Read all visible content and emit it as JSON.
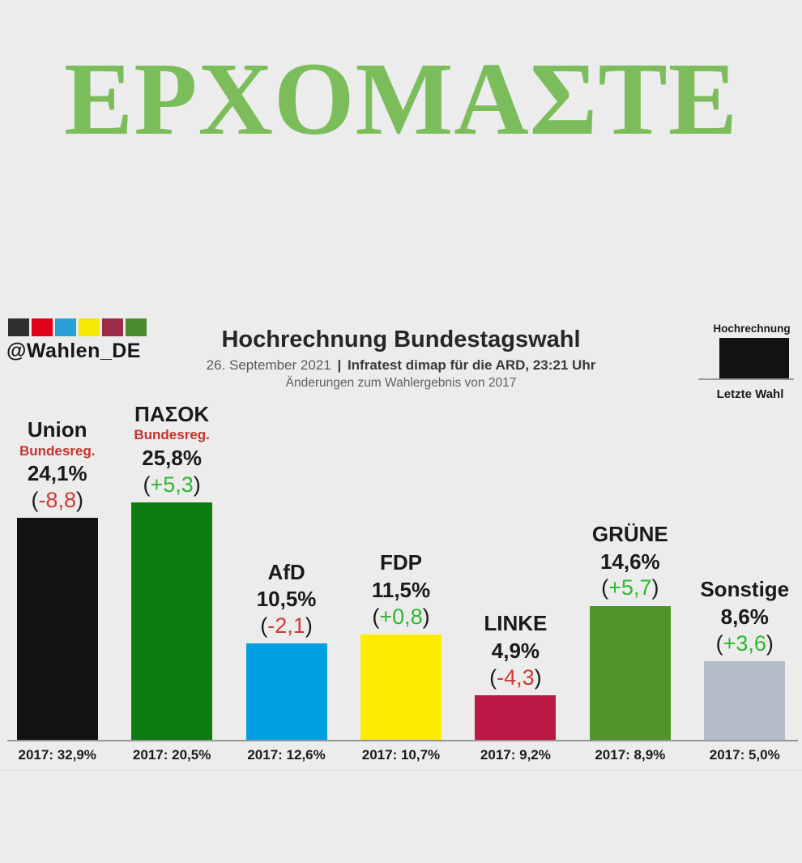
{
  "banner": {
    "text": "ΕΡΧΟΜΑΣΤΕ",
    "color": "#7cbd5b"
  },
  "header": {
    "logo": {
      "handle": "@Wahlen_DE",
      "squares": [
        "#2f2f2d",
        "#e2001a",
        "#2b9fd8",
        "#f5e903",
        "#9c2b47",
        "#4b8b31"
      ]
    },
    "title": "Hochrechnung Bundestagswahl",
    "subtitle": {
      "date": "26. September 2021",
      "separator": "|",
      "source": "Infratest dimap für die ARD, 23:21 Uhr",
      "note": "Änderungen zum Wahlergebnis von 2017"
    },
    "legend": {
      "top_label": "Hochrechnung",
      "bottom_label": "Letzte Wahl",
      "box_color": "#121212"
    }
  },
  "chart_data": {
    "type": "bar",
    "title": "Hochrechnung Bundestagswahl",
    "subtitle": "26. September 2021 | Infratest dimap für die ARD, 23:21 Uhr",
    "note": "Änderungen zum Wahlergebnis von 2017",
    "categories": [
      "Union",
      "ΠΑΣΟΚ",
      "AfD",
      "FDP",
      "LINKE",
      "GRÜNE",
      "Sonstige"
    ],
    "values": [
      24.1,
      25.8,
      10.5,
      11.5,
      4.9,
      14.6,
      8.6
    ],
    "changes": [
      "-8,8",
      "+5,3",
      "-2,1",
      "+0,8",
      "-4,3",
      "+5,7",
      "+3,6"
    ],
    "previous_2017": [
      32.9,
      20.5,
      12.6,
      10.7,
      9.2,
      8.9,
      5.0
    ],
    "ylim": [
      0,
      30
    ],
    "grid": false,
    "legend_position": "top-right",
    "parties": [
      {
        "key": "union",
        "name": "Union",
        "tag": "Bundesreg.",
        "value": 24.1,
        "value_label": "24,1%",
        "change": "-8,8",
        "change_color": "#d03a34",
        "color": "#121212",
        "axis_label": "2017: 32,9%"
      },
      {
        "key": "pasok",
        "name": "ΠΑΣΟΚ",
        "tag": "Bundesreg.",
        "value": 25.8,
        "value_label": "25,8%",
        "change": "+5,3",
        "change_color": "#2eb82e",
        "color": "#0d7d12",
        "axis_label": "2017: 20,5%"
      },
      {
        "key": "afd",
        "name": "AfD",
        "tag": "",
        "value": 10.5,
        "value_label": "10,5%",
        "change": "-2,1",
        "change_color": "#d03a34",
        "color": "#009fe0",
        "axis_label": "2017: 12,6%"
      },
      {
        "key": "fdp",
        "name": "FDP",
        "tag": "",
        "value": 11.5,
        "value_label": "11,5%",
        "change": "+0,8",
        "change_color": "#2eb82e",
        "color": "#fdec00",
        "axis_label": "2017: 10,7%"
      },
      {
        "key": "linke",
        "name": "LINKE",
        "tag": "",
        "value": 4.9,
        "value_label": "4,9%",
        "change": "-4,3",
        "change_color": "#d03a34",
        "color": "#bc1a45",
        "axis_label": "2017: 9,2%"
      },
      {
        "key": "gruene",
        "name": "GRÜNE",
        "tag": "",
        "value": 14.6,
        "value_label": "14,6%",
        "change": "+5,7",
        "change_color": "#2eb82e",
        "color": "#509527",
        "axis_label": "2017: 8,9%"
      },
      {
        "key": "sonstige",
        "name": "Sonstige",
        "tag": "",
        "value": 8.6,
        "value_label": "8,6%",
        "change": "+3,6",
        "change_color": "#2eb82e",
        "color": "#b5bdca",
        "axis_label": "2017: 5,0%"
      }
    ]
  }
}
